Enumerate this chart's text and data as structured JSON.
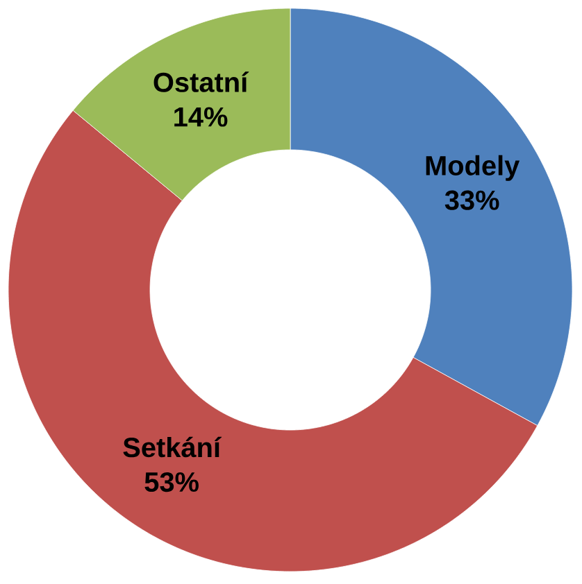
{
  "chart_data": {
    "type": "donut",
    "categories": [
      "Modely",
      "Setkání",
      "Ostatní"
    ],
    "values": [
      33,
      53,
      14
    ],
    "colors": [
      "#4f81bd",
      "#c0504d",
      "#9bbb59"
    ],
    "value_labels": [
      "33%",
      "53%",
      "14%"
    ]
  }
}
